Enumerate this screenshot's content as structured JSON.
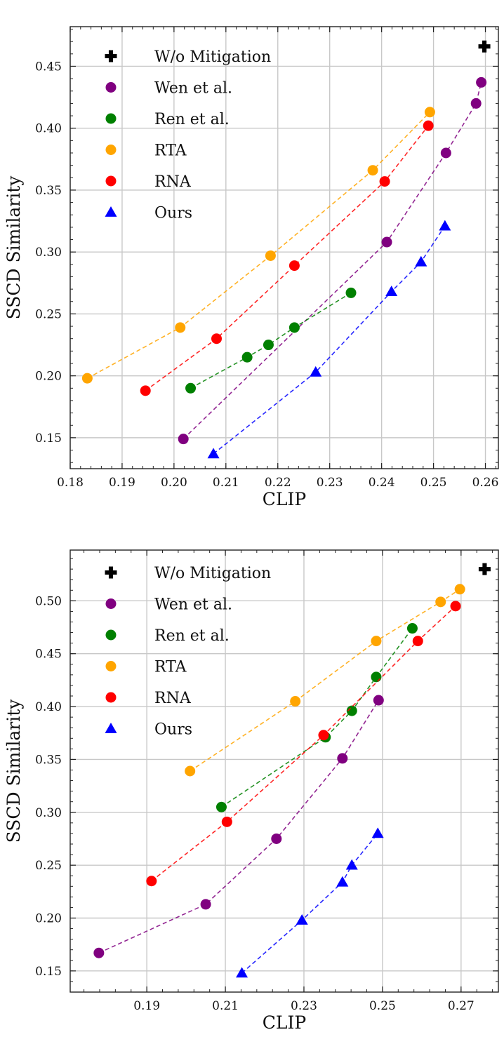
{
  "chart_data": [
    {
      "type": "scatter",
      "title": "",
      "xlabel": "CLIP",
      "ylabel": "SSCD Similarity",
      "xlim": [
        0.18,
        0.2625
      ],
      "ylim": [
        0.125,
        0.482
      ],
      "xticks": [
        0.18,
        0.19,
        0.2,
        0.21,
        0.22,
        0.23,
        0.24,
        0.25,
        0.26
      ],
      "xtick_labels": [
        "0.18",
        "0.19",
        "0.20",
        "0.21",
        "0.22",
        "0.23",
        "0.24",
        "0.25",
        "0.26"
      ],
      "yticks": [
        0.15,
        0.2,
        0.25,
        0.3,
        0.35,
        0.4,
        0.45
      ],
      "ytick_labels": [
        "0.15",
        "0.20",
        "0.25",
        "0.30",
        "0.35",
        "0.40",
        "0.45"
      ],
      "grid": true,
      "legend_position": "top-left",
      "series": [
        {
          "name": "W/o Mitigation",
          "color": "#000000",
          "marker": "cross",
          "dashed": false,
          "x": [
            0.2598
          ],
          "y": [
            0.466
          ]
        },
        {
          "name": "Wen et al.",
          "color": "#800080",
          "marker": "circle",
          "dashed": true,
          "x": [
            0.2018,
            0.241,
            0.2524,
            0.2582,
            0.2592
          ],
          "y": [
            0.149,
            0.308,
            0.38,
            0.42,
            0.437
          ]
        },
        {
          "name": "Ren et al.",
          "color": "#008000",
          "marker": "circle",
          "dashed": true,
          "x": [
            0.2032,
            0.2141,
            0.2182,
            0.2232,
            0.2341
          ],
          "y": [
            0.19,
            0.215,
            0.225,
            0.239,
            0.267
          ]
        },
        {
          "name": "RTA",
          "color": "#FFA500",
          "marker": "circle",
          "dashed": true,
          "x": [
            0.1833,
            0.2012,
            0.2186,
            0.2383,
            0.2493
          ],
          "y": [
            0.198,
            0.239,
            0.297,
            0.366,
            0.413
          ]
        },
        {
          "name": "RNA",
          "color": "#FF0000",
          "marker": "circle",
          "dashed": true,
          "x": [
            0.1945,
            0.2082,
            0.2232,
            0.2406,
            0.249
          ],
          "y": [
            0.188,
            0.23,
            0.289,
            0.357,
            0.402
          ]
        },
        {
          "name": "Ours",
          "color": "#0000FF",
          "marker": "triangle",
          "dashed": true,
          "x": [
            0.2076,
            0.2273,
            0.2419,
            0.2476,
            0.2522
          ],
          "y": [
            0.137,
            0.203,
            0.268,
            0.292,
            0.321
          ]
        }
      ]
    },
    {
      "type": "scatter",
      "title": "",
      "xlabel": "CLIP",
      "ylabel": "SSCD Similarity",
      "xlim": [
        0.1705,
        0.2795
      ],
      "ylim": [
        0.13,
        0.548
      ],
      "xticks": [
        0.19,
        0.21,
        0.23,
        0.25,
        0.27
      ],
      "xtick_labels": [
        "0.19",
        "0.21",
        "0.23",
        "0.25",
        "0.27"
      ],
      "yticks": [
        0.15,
        0.2,
        0.25,
        0.3,
        0.35,
        0.4,
        0.45,
        0.5
      ],
      "ytick_labels": [
        "0.15",
        "0.20",
        "0.25",
        "0.30",
        "0.35",
        "0.40",
        "0.45",
        "0.50"
      ],
      "grid": true,
      "legend_position": "top-left",
      "series": [
        {
          "name": "W/o Mitigation",
          "color": "#000000",
          "marker": "cross",
          "dashed": false,
          "x": [
            0.276
          ],
          "y": [
            0.53
          ]
        },
        {
          "name": "Wen et al.",
          "color": "#800080",
          "marker": "circle",
          "dashed": true,
          "x": [
            0.1778,
            0.205,
            0.223,
            0.2398,
            0.249
          ],
          "y": [
            0.167,
            0.213,
            0.275,
            0.351,
            0.406
          ]
        },
        {
          "name": "Ren et al.",
          "color": "#008000",
          "marker": "circle",
          "dashed": true,
          "x": [
            0.209,
            0.2355,
            0.2422,
            0.2484,
            0.2576
          ],
          "y": [
            0.305,
            0.371,
            0.396,
            0.428,
            0.474
          ]
        },
        {
          "name": "RTA",
          "color": "#FFA500",
          "marker": "circle",
          "dashed": true,
          "x": [
            0.201,
            0.2278,
            0.2484,
            0.2648,
            0.2697
          ],
          "y": [
            0.339,
            0.405,
            0.462,
            0.499,
            0.511
          ]
        },
        {
          "name": "RNA",
          "color": "#FF0000",
          "marker": "circle",
          "dashed": true,
          "x": [
            0.1912,
            0.2104,
            0.235,
            0.259,
            0.2686
          ],
          "y": [
            0.235,
            0.291,
            0.373,
            0.462,
            0.495
          ]
        },
        {
          "name": "Ours",
          "color": "#0000FF",
          "marker": "triangle",
          "dashed": true,
          "x": [
            0.2142,
            0.2295,
            0.2398,
            0.2422,
            0.2488
          ],
          "y": [
            0.148,
            0.198,
            0.234,
            0.25,
            0.28
          ]
        }
      ]
    }
  ]
}
